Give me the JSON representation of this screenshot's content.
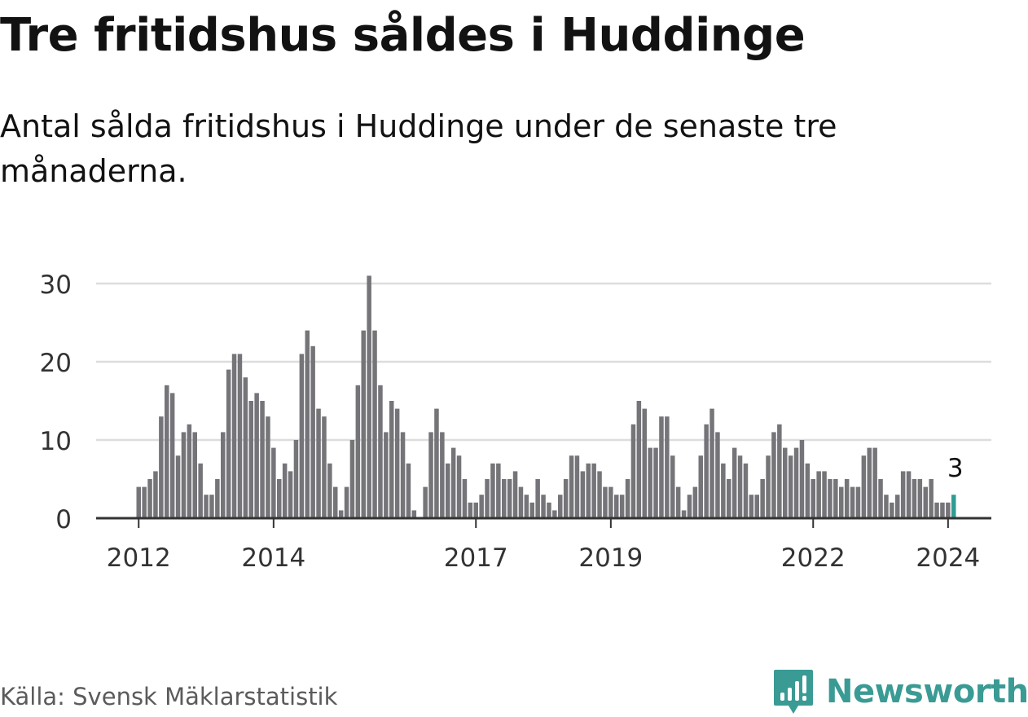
{
  "title": "Tre fritidshus såldes i Huddinge",
  "subtitle": "Antal sålda fritidshus i Huddinge under de senaste tre månaderna.",
  "source": "Källa: Svensk Mäklarstatistik",
  "brand": "Newsworthy",
  "colors": {
    "bar": "#757478",
    "highlight": "#2f9c93",
    "grid": "#dddddd",
    "axis": "#333333",
    "brand": "#3a9b94"
  },
  "chart_data": {
    "type": "bar",
    "start_month": "2012-01",
    "values": [
      4,
      4,
      5,
      6,
      13,
      17,
      16,
      8,
      11,
      12,
      11,
      7,
      3,
      3,
      5,
      11,
      19,
      21,
      21,
      18,
      15,
      16,
      15,
      13,
      9,
      5,
      7,
      6,
      10,
      21,
      24,
      22,
      14,
      13,
      7,
      4,
      1,
      4,
      10,
      17,
      24,
      31,
      24,
      17,
      11,
      15,
      14,
      11,
      7,
      1,
      0,
      4,
      11,
      14,
      11,
      7,
      9,
      8,
      5,
      2,
      2,
      3,
      5,
      7,
      7,
      5,
      5,
      6,
      4,
      3,
      2,
      5,
      3,
      2,
      1,
      3,
      5,
      8,
      8,
      6,
      7,
      7,
      6,
      4,
      4,
      3,
      3,
      5,
      12,
      15,
      14,
      9,
      9,
      13,
      13,
      8,
      4,
      1,
      3,
      4,
      8,
      12,
      14,
      11,
      7,
      5,
      9,
      8,
      7,
      3,
      3,
      5,
      8,
      11,
      12,
      9,
      8,
      9,
      10,
      7,
      5,
      6,
      6,
      5,
      5,
      4,
      5,
      4,
      4,
      8,
      9,
      9,
      5,
      3,
      2,
      3,
      6,
      6,
      5,
      5,
      4,
      5,
      2,
      2,
      2,
      3
    ],
    "y_ticks": [
      "0",
      "10",
      "20",
      "30"
    ],
    "ylim": [
      0,
      30
    ],
    "x_ticks": [
      {
        "label": "2012",
        "index": 0
      },
      {
        "label": "2014",
        "index": 24
      },
      {
        "label": "2017",
        "index": 60
      },
      {
        "label": "2019",
        "index": 84
      },
      {
        "label": "2022",
        "index": 120
      },
      {
        "label": "2024",
        "index": 144
      }
    ],
    "last_value_label": "3",
    "grid": true
  }
}
